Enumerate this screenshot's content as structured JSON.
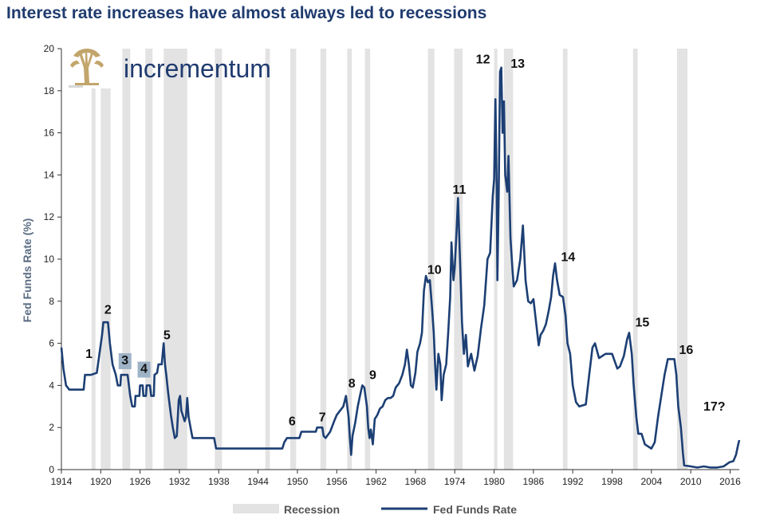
{
  "chart_data": {
    "type": "line",
    "title": "Interest rate increases have almost always led to recessions",
    "brand": "incrementum",
    "ylabel": "Fed Funds Rate (%)",
    "xlabel": "",
    "xlim": [
      1914,
      2017.4
    ],
    "ylim": [
      0,
      20
    ],
    "x_ticks": [
      1914,
      1920,
      1926,
      1932,
      1938,
      1944,
      1950,
      1956,
      1962,
      1968,
      1974,
      1980,
      1986,
      1992,
      1998,
      2004,
      2010,
      2016
    ],
    "y_ticks": [
      0,
      2,
      4,
      6,
      8,
      10,
      12,
      14,
      16,
      18,
      20
    ],
    "grid": false,
    "legend_position": "bottom-center",
    "legend": [
      {
        "key": "recession",
        "label": "Recession",
        "color": "#e3e3e3"
      },
      {
        "key": "rate",
        "label": "Fed Funds Rate",
        "color": "#1c3f74"
      }
    ],
    "colors": {
      "title": "#1f3b6f",
      "line": "#1c3f74",
      "recession": "#e3e3e3",
      "annotation_box": "#9eb3c6",
      "logo_gold": "#c2a56b",
      "brand_text": "#1f3b6f"
    },
    "recessions": [
      [
        1918.6,
        1919.2
      ],
      [
        1920.0,
        1921.5
      ],
      [
        1923.3,
        1924.5
      ],
      [
        1926.8,
        1927.9
      ],
      [
        1929.6,
        1933.2
      ],
      [
        1937.4,
        1938.5
      ],
      [
        1945.1,
        1945.8
      ],
      [
        1948.9,
        1949.8
      ],
      [
        1953.5,
        1954.4
      ],
      [
        1957.6,
        1958.3
      ],
      [
        1960.3,
        1961.1
      ],
      [
        1969.9,
        1970.9
      ],
      [
        1973.9,
        1975.2
      ],
      [
        1980.0,
        1980.5
      ],
      [
        1981.5,
        1982.9
      ],
      [
        1990.5,
        1991.2
      ],
      [
        2001.2,
        2001.9
      ],
      [
        2007.9,
        2009.5
      ]
    ],
    "series": [
      {
        "name": "Fed Funds Rate",
        "points": [
          [
            1914.0,
            5.8
          ],
          [
            1914.3,
            4.8
          ],
          [
            1914.7,
            4.0
          ],
          [
            1915.2,
            3.8
          ],
          [
            1916.5,
            3.8
          ],
          [
            1917.4,
            3.8
          ],
          [
            1917.6,
            4.5
          ],
          [
            1918.5,
            4.5
          ],
          [
            1919.4,
            4.6
          ],
          [
            1919.8,
            5.5
          ],
          [
            1920.2,
            6.4
          ],
          [
            1920.4,
            7.0
          ],
          [
            1921.1,
            7.0
          ],
          [
            1921.4,
            6.0
          ],
          [
            1921.8,
            5.0
          ],
          [
            1922.3,
            4.5
          ],
          [
            1922.6,
            4.0
          ],
          [
            1923.0,
            4.0
          ],
          [
            1923.1,
            4.5
          ],
          [
            1924.1,
            4.5
          ],
          [
            1924.5,
            3.5
          ],
          [
            1924.8,
            3.0
          ],
          [
            1925.2,
            3.0
          ],
          [
            1925.3,
            3.5
          ],
          [
            1925.9,
            3.5
          ],
          [
            1926.0,
            4.0
          ],
          [
            1926.4,
            4.0
          ],
          [
            1926.5,
            3.5
          ],
          [
            1926.9,
            3.5
          ],
          [
            1927.0,
            4.0
          ],
          [
            1927.5,
            4.0
          ],
          [
            1927.7,
            3.5
          ],
          [
            1928.1,
            3.5
          ],
          [
            1928.2,
            4.5
          ],
          [
            1928.6,
            4.6
          ],
          [
            1928.8,
            5.0
          ],
          [
            1929.3,
            5.0
          ],
          [
            1929.6,
            6.0
          ],
          [
            1929.8,
            5.0
          ],
          [
            1930.0,
            4.5
          ],
          [
            1930.3,
            3.6
          ],
          [
            1930.7,
            2.6
          ],
          [
            1931.0,
            2.0
          ],
          [
            1931.3,
            1.5
          ],
          [
            1931.6,
            1.6
          ],
          [
            1931.9,
            3.3
          ],
          [
            1932.1,
            3.5
          ],
          [
            1932.3,
            2.8
          ],
          [
            1932.6,
            2.5
          ],
          [
            1932.8,
            2.3
          ],
          [
            1933.0,
            2.5
          ],
          [
            1933.2,
            3.4
          ],
          [
            1933.4,
            2.5
          ],
          [
            1933.7,
            2.0
          ],
          [
            1934.0,
            1.5
          ],
          [
            1937.3,
            1.5
          ],
          [
            1937.6,
            1.0
          ],
          [
            1947.7,
            1.0
          ],
          [
            1948.0,
            1.3
          ],
          [
            1948.4,
            1.5
          ],
          [
            1950.3,
            1.5
          ],
          [
            1950.6,
            1.8
          ],
          [
            1952.8,
            1.8
          ],
          [
            1953.0,
            2.0
          ],
          [
            1953.8,
            2.0
          ],
          [
            1954.0,
            1.6
          ],
          [
            1954.3,
            1.5
          ],
          [
            1955.0,
            1.8
          ],
          [
            1955.6,
            2.3
          ],
          [
            1956.0,
            2.6
          ],
          [
            1956.5,
            2.8
          ],
          [
            1957.0,
            3.0
          ],
          [
            1957.4,
            3.5
          ],
          [
            1957.8,
            2.5
          ],
          [
            1958.0,
            1.5
          ],
          [
            1958.2,
            0.7
          ],
          [
            1958.4,
            1.6
          ],
          [
            1958.8,
            2.2
          ],
          [
            1959.2,
            3.0
          ],
          [
            1959.6,
            3.6
          ],
          [
            1959.9,
            4.0
          ],
          [
            1960.2,
            3.9
          ],
          [
            1960.6,
            3.0
          ],
          [
            1960.8,
            2.0
          ],
          [
            1961.0,
            1.5
          ],
          [
            1961.2,
            1.9
          ],
          [
            1961.5,
            1.2
          ],
          [
            1961.8,
            2.4
          ],
          [
            1962.2,
            2.6
          ],
          [
            1962.6,
            2.9
          ],
          [
            1963.0,
            3.0
          ],
          [
            1963.4,
            3.3
          ],
          [
            1963.8,
            3.4
          ],
          [
            1964.2,
            3.4
          ],
          [
            1964.6,
            3.5
          ],
          [
            1965.0,
            3.9
          ],
          [
            1965.5,
            4.1
          ],
          [
            1966.0,
            4.5
          ],
          [
            1966.4,
            5.0
          ],
          [
            1966.7,
            5.7
          ],
          [
            1967.0,
            5.0
          ],
          [
            1967.3,
            4.0
          ],
          [
            1967.6,
            3.9
          ],
          [
            1968.0,
            4.6
          ],
          [
            1968.3,
            5.6
          ],
          [
            1968.7,
            6.0
          ],
          [
            1969.0,
            6.5
          ],
          [
            1969.3,
            8.5
          ],
          [
            1969.6,
            9.2
          ],
          [
            1969.9,
            8.9
          ],
          [
            1970.2,
            9.0
          ],
          [
            1970.5,
            7.8
          ],
          [
            1970.8,
            6.5
          ],
          [
            1971.0,
            5.0
          ],
          [
            1971.2,
            3.8
          ],
          [
            1971.5,
            5.5
          ],
          [
            1971.8,
            5.0
          ],
          [
            1972.0,
            3.3
          ],
          [
            1972.3,
            4.5
          ],
          [
            1972.7,
            5.0
          ],
          [
            1973.0,
            6.5
          ],
          [
            1973.3,
            8.2
          ],
          [
            1973.5,
            10.8
          ],
          [
            1973.8,
            9.0
          ],
          [
            1974.0,
            9.6
          ],
          [
            1974.3,
            11.5
          ],
          [
            1974.5,
            12.9
          ],
          [
            1974.8,
            10.0
          ],
          [
            1975.1,
            7.0
          ],
          [
            1975.4,
            5.5
          ],
          [
            1975.7,
            6.4
          ],
          [
            1976.0,
            4.9
          ],
          [
            1976.5,
            5.5
          ],
          [
            1977.0,
            4.7
          ],
          [
            1977.5,
            5.4
          ],
          [
            1978.0,
            6.7
          ],
          [
            1978.5,
            7.8
          ],
          [
            1979.0,
            10.0
          ],
          [
            1979.4,
            10.3
          ],
          [
            1979.8,
            13.0
          ],
          [
            1980.0,
            13.8
          ],
          [
            1980.2,
            17.6
          ],
          [
            1980.4,
            13.5
          ],
          [
            1980.5,
            9.0
          ],
          [
            1980.7,
            13.0
          ],
          [
            1980.9,
            18.9
          ],
          [
            1981.1,
            19.1
          ],
          [
            1981.3,
            16.0
          ],
          [
            1981.5,
            17.5
          ],
          [
            1981.7,
            14.0
          ],
          [
            1982.0,
            13.2
          ],
          [
            1982.2,
            14.9
          ],
          [
            1982.5,
            11.0
          ],
          [
            1982.8,
            9.5
          ],
          [
            1983.0,
            8.7
          ],
          [
            1983.5,
            9.0
          ],
          [
            1984.0,
            10.0
          ],
          [
            1984.4,
            11.6
          ],
          [
            1984.8,
            9.0
          ],
          [
            1985.2,
            8.0
          ],
          [
            1985.6,
            7.9
          ],
          [
            1986.0,
            8.1
          ],
          [
            1986.4,
            7.0
          ],
          [
            1986.8,
            5.9
          ],
          [
            1987.1,
            6.4
          ],
          [
            1987.5,
            6.6
          ],
          [
            1987.9,
            6.9
          ],
          [
            1988.3,
            7.5
          ],
          [
            1988.7,
            8.2
          ],
          [
            1989.0,
            9.2
          ],
          [
            1989.3,
            9.8
          ],
          [
            1989.6,
            9.0
          ],
          [
            1990.0,
            8.3
          ],
          [
            1990.5,
            8.2
          ],
          [
            1990.9,
            7.3
          ],
          [
            1991.2,
            6.0
          ],
          [
            1991.6,
            5.5
          ],
          [
            1992.0,
            4.0
          ],
          [
            1992.5,
            3.2
          ],
          [
            1993.0,
            3.0
          ],
          [
            1994.0,
            3.1
          ],
          [
            1994.5,
            4.5
          ],
          [
            1995.0,
            5.8
          ],
          [
            1995.4,
            6.0
          ],
          [
            1996.0,
            5.3
          ],
          [
            1997.0,
            5.5
          ],
          [
            1998.0,
            5.5
          ],
          [
            1998.8,
            4.8
          ],
          [
            1999.2,
            4.9
          ],
          [
            1999.8,
            5.4
          ],
          [
            2000.3,
            6.2
          ],
          [
            2000.6,
            6.5
          ],
          [
            2001.0,
            5.5
          ],
          [
            2001.3,
            4.0
          ],
          [
            2001.7,
            2.5
          ],
          [
            2002.0,
            1.7
          ],
          [
            2002.5,
            1.7
          ],
          [
            2003.0,
            1.2
          ],
          [
            2004.0,
            1.0
          ],
          [
            2004.5,
            1.3
          ],
          [
            2005.0,
            2.5
          ],
          [
            2005.5,
            3.5
          ],
          [
            2006.0,
            4.5
          ],
          [
            2006.5,
            5.25
          ],
          [
            2007.5,
            5.25
          ],
          [
            2007.8,
            4.5
          ],
          [
            2008.1,
            3.0
          ],
          [
            2008.5,
            2.0
          ],
          [
            2008.8,
            0.8
          ],
          [
            2009.0,
            0.2
          ],
          [
            2010.0,
            0.15
          ],
          [
            2011.0,
            0.1
          ],
          [
            2012.0,
            0.15
          ],
          [
            2013.0,
            0.1
          ],
          [
            2014.0,
            0.1
          ],
          [
            2015.0,
            0.15
          ],
          [
            2015.9,
            0.35
          ],
          [
            2016.5,
            0.4
          ],
          [
            2016.9,
            0.7
          ],
          [
            2017.2,
            1.15
          ],
          [
            2017.4,
            1.4
          ]
        ]
      }
    ],
    "annotations": [
      {
        "label": "1",
        "x": 1918.2,
        "y": 5.3,
        "boxed": false
      },
      {
        "label": "2",
        "x": 1921.1,
        "y": 7.4,
        "boxed": false
      },
      {
        "label": "3",
        "x": 1923.7,
        "y": 5.0,
        "boxed": true
      },
      {
        "label": "4",
        "x": 1926.6,
        "y": 4.6,
        "boxed": true
      },
      {
        "label": "5",
        "x": 1930.1,
        "y": 6.2,
        "boxed": false
      },
      {
        "label": "6",
        "x": 1949.2,
        "y": 2.1,
        "boxed": false
      },
      {
        "label": "7",
        "x": 1953.8,
        "y": 2.3,
        "boxed": false
      },
      {
        "label": "8",
        "x": 1958.3,
        "y": 3.9,
        "boxed": false
      },
      {
        "label": "9",
        "x": 1961.5,
        "y": 4.3,
        "boxed": false
      },
      {
        "label": "10",
        "x": 1970.9,
        "y": 9.3,
        "boxed": false
      },
      {
        "label": "11",
        "x": 1974.7,
        "y": 13.1,
        "boxed": false
      },
      {
        "label": "12",
        "x": 1978.3,
        "y": 19.3,
        "boxed": false
      },
      {
        "label": "13",
        "x": 1983.6,
        "y": 19.1,
        "boxed": false
      },
      {
        "label": "14",
        "x": 1991.3,
        "y": 9.9,
        "boxed": false
      },
      {
        "label": "15",
        "x": 2002.6,
        "y": 6.8,
        "boxed": false
      },
      {
        "label": "16",
        "x": 2009.3,
        "y": 5.5,
        "boxed": false
      },
      {
        "label": "17?",
        "x": 2013.6,
        "y": 2.8,
        "boxed": false
      }
    ]
  }
}
